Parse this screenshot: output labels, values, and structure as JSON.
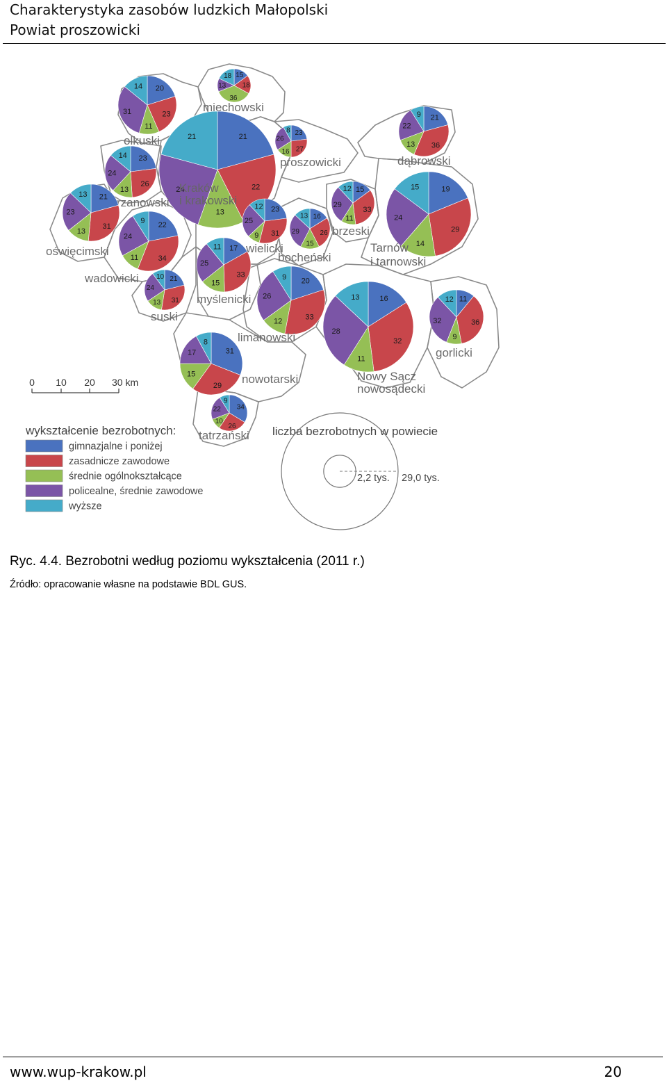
{
  "header": {
    "line1": "Charakterystyka zasobów ludzkich Małopolski",
    "line2": "Powiat proszowicki"
  },
  "colors": {
    "gimnazjalne": "#4a72bf",
    "zasadnicze": "#c8464b",
    "srednie": "#95bf55",
    "policealne": "#7b55a6",
    "wyzsze": "#45abc9",
    "border": "#8a8a8a"
  },
  "legend": {
    "title": "wykształcenie bezrobotnych:",
    "items": [
      {
        "key": "gimnazjalne",
        "label": "gimnazjalne i poniżej"
      },
      {
        "key": "zasadnicze",
        "label": "zasadnicze zawodowe"
      },
      {
        "key": "srednie",
        "label": "średnie ogólnokształcące"
      },
      {
        "key": "policealne",
        "label": "policealne, średnie zawodowe"
      },
      {
        "key": "wyzsze",
        "label": "wyższe"
      }
    ]
  },
  "size_legend": {
    "title": "liczba bezrobotnych w powiecie",
    "small_label": "2,2 tys.",
    "large_label": "29,0 tys.",
    "small_value": 2.2,
    "large_value": 29.0
  },
  "scale_bar": {
    "labels": [
      "0",
      "10",
      "20",
      "30 km"
    ]
  },
  "districts": [
    {
      "name": "miechowski",
      "values": [
        15,
        18,
        36,
        13,
        18
      ]
    },
    {
      "name": "olkuski",
      "values": [
        20,
        23,
        11,
        31,
        14
      ]
    },
    {
      "name": "Kraków i krakowski",
      "line1": "Kraków",
      "line2": "i krakowski",
      "values": [
        21,
        22,
        13,
        24,
        21
      ]
    },
    {
      "name": "proszowicki",
      "values": [
        23,
        27,
        16,
        26,
        8
      ]
    },
    {
      "name": "dąbrowski",
      "values": [
        21,
        36,
        13,
        22,
        9
      ]
    },
    {
      "name": "chrzanowski",
      "values": [
        23,
        26,
        13,
        24,
        14
      ]
    },
    {
      "name": "oświęcimski",
      "values": [
        21,
        31,
        13,
        23,
        13
      ]
    },
    {
      "name": "wadowicki",
      "values": [
        22,
        34,
        11,
        24,
        9
      ]
    },
    {
      "name": "wielicki",
      "values": [
        23,
        31,
        9,
        25,
        12
      ]
    },
    {
      "name": "bocheński",
      "values": [
        16,
        26,
        15,
        29,
        13
      ]
    },
    {
      "name": "brzeski",
      "values": [
        15,
        33,
        11,
        29,
        12
      ]
    },
    {
      "name": "Tarnów i tarnowski",
      "line1": "Tarnów",
      "line2": "i tarnowski",
      "values": [
        19,
        29,
        14,
        24,
        15
      ]
    },
    {
      "name": "suski",
      "values": [
        21,
        31,
        13,
        24,
        10
      ]
    },
    {
      "name": "myślenicki",
      "values": [
        17,
        33,
        15,
        25,
        11
      ]
    },
    {
      "name": "limanowski",
      "values": [
        20,
        33,
        12,
        26,
        9
      ]
    },
    {
      "name": "Nowy Sącz nowosądecki",
      "line1": "Nowy Sącz",
      "line2": "nowosądecki",
      "values": [
        16,
        32,
        11,
        28,
        13
      ]
    },
    {
      "name": "gorlicki",
      "values": [
        11,
        36,
        9,
        32,
        12
      ]
    },
    {
      "name": "nowotarski",
      "values": [
        31,
        29,
        15,
        17,
        8
      ]
    },
    {
      "name": "tatrzański",
      "values": [
        34,
        26,
        10,
        22,
        9
      ]
    }
  ],
  "caption": "Ryc. 4.4. Bezrobotni według poziomu wykształcenia (2011 r.)",
  "source": "Źródło: opracowanie własne na podstawie BDL GUS.",
  "footer": {
    "url": "www.wup-krakow.pl",
    "page": "20"
  }
}
